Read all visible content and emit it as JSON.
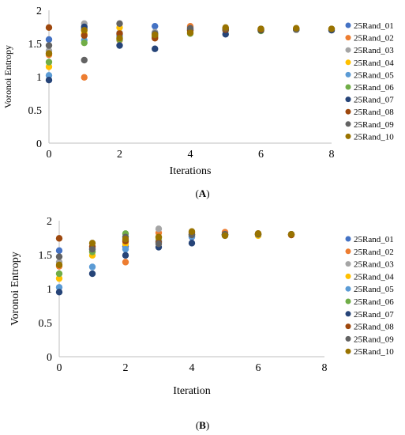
{
  "legend_colors": [
    "#4472C4",
    "#ED7D31",
    "#A5A5A5",
    "#FFC000",
    "#5B9BD5",
    "#70AD47",
    "#264478",
    "#9E480E",
    "#636363",
    "#997300"
  ],
  "chart_data": [
    {
      "type": "scatter",
      "panel_label": "A",
      "xlabel": "Iterations",
      "ylabel": "Voronoi Entropy",
      "xlim": [
        0,
        8
      ],
      "ylim": [
        0,
        2
      ],
      "xticks": [
        0,
        2,
        4,
        6,
        8
      ],
      "yticks": [
        0,
        0.5,
        1,
        1.5,
        2
      ],
      "grid": false,
      "legend": "right",
      "series": [
        {
          "name": "25Rand_01",
          "points": [
            [
              0,
              1.56
            ],
            [
              1,
              1.72
            ],
            [
              2,
              1.63
            ],
            [
              3,
              1.76
            ],
            [
              4,
              1.74
            ],
            [
              5,
              1.7
            ]
          ]
        },
        {
          "name": "25Rand_02",
          "points": [
            [
              0,
              1.33
            ],
            [
              1,
              0.99
            ],
            [
              2,
              1.55
            ],
            [
              3,
              1.6
            ],
            [
              4,
              1.76
            ],
            [
              5,
              1.72
            ],
            [
              6,
              1.71
            ],
            [
              7,
              1.72
            ],
            [
              8,
              1.71
            ]
          ]
        },
        {
          "name": "25Rand_03",
          "points": [
            [
              0,
              1.39
            ],
            [
              1,
              1.8
            ],
            [
              2,
              1.66
            ],
            [
              3,
              1.67
            ],
            [
              4,
              1.72
            ],
            [
              5,
              1.71
            ],
            [
              6,
              1.7
            ],
            [
              7,
              1.71
            ],
            [
              8,
              1.72
            ]
          ]
        },
        {
          "name": "25Rand_04",
          "points": [
            [
              0,
              1.15
            ],
            [
              1,
              1.65
            ],
            [
              2,
              1.74
            ],
            [
              3,
              1.62
            ],
            [
              4,
              1.68
            ],
            [
              5,
              1.73
            ],
            [
              6,
              1.71
            ]
          ]
        },
        {
          "name": "25Rand_05",
          "points": [
            [
              0,
              1.02
            ],
            [
              1,
              1.55
            ],
            [
              2,
              1.6
            ],
            [
              3,
              1.65
            ],
            [
              4,
              1.7
            ],
            [
              5,
              1.71
            ]
          ]
        },
        {
          "name": "25Rand_06",
          "points": [
            [
              0,
              1.22
            ],
            [
              1,
              1.51
            ],
            [
              2,
              1.56
            ],
            [
              3,
              1.6
            ],
            [
              4,
              1.65
            ],
            [
              5,
              1.7
            ],
            [
              6,
              1.69
            ],
            [
              7,
              1.71
            ]
          ]
        },
        {
          "name": "25Rand_07",
          "points": [
            [
              0,
              0.95
            ],
            [
              1,
              1.75
            ],
            [
              2,
              1.47
            ],
            [
              3,
              1.42
            ],
            [
              4,
              1.71
            ],
            [
              5,
              1.64
            ],
            [
              6,
              1.7
            ],
            [
              7,
              1.71
            ],
            [
              8,
              1.7
            ]
          ]
        },
        {
          "name": "25Rand_08",
          "points": [
            [
              0,
              1.74
            ],
            [
              1,
              1.62
            ],
            [
              2,
              1.65
            ],
            [
              3,
              1.58
            ],
            [
              4,
              1.7
            ],
            [
              5,
              1.71
            ],
            [
              6,
              1.71
            ],
            [
              7,
              1.72
            ]
          ]
        },
        {
          "name": "25Rand_09",
          "points": [
            [
              0,
              1.47
            ],
            [
              1,
              1.25
            ],
            [
              2,
              1.8
            ],
            [
              3,
              1.65
            ],
            [
              4,
              1.73
            ],
            [
              5,
              1.73
            ],
            [
              6,
              1.72
            ],
            [
              7,
              1.71
            ]
          ]
        },
        {
          "name": "25Rand_10",
          "points": [
            [
              0,
              1.35
            ],
            [
              1,
              1.7
            ],
            [
              2,
              1.58
            ],
            [
              3,
              1.63
            ],
            [
              4,
              1.66
            ],
            [
              5,
              1.74
            ],
            [
              6,
              1.72
            ],
            [
              7,
              1.73
            ],
            [
              8,
              1.72
            ]
          ]
        }
      ]
    },
    {
      "type": "scatter",
      "panel_label": "B",
      "xlabel": "Iteration",
      "ylabel": "Voronoi Entropy",
      "xlim": [
        0,
        8
      ],
      "ylim": [
        0,
        2
      ],
      "xticks": [
        0,
        2,
        4,
        6,
        8
      ],
      "yticks": [
        0,
        0.5,
        1,
        1.5,
        2
      ],
      "grid": false,
      "legend": "right",
      "series": [
        {
          "name": "25Rand_01",
          "points": [
            [
              0,
              1.56
            ],
            [
              1,
              1.6
            ],
            [
              2,
              1.62
            ],
            [
              3,
              1.7
            ],
            [
              4,
              1.76
            ],
            [
              5,
              1.78
            ]
          ]
        },
        {
          "name": "25Rand_02",
          "points": [
            [
              0,
              1.33
            ],
            [
              1,
              1.55
            ],
            [
              2,
              1.39
            ],
            [
              3,
              1.82
            ],
            [
              4,
              1.8
            ],
            [
              5,
              1.83
            ],
            [
              6,
              1.8
            ],
            [
              7,
              1.79
            ]
          ]
        },
        {
          "name": "25Rand_03",
          "points": [
            [
              0,
              1.39
            ],
            [
              1,
              1.58
            ],
            [
              2,
              1.7
            ],
            [
              3,
              1.88
            ],
            [
              4,
              1.8
            ],
            [
              5,
              1.8
            ],
            [
              6,
              1.81
            ]
          ]
        },
        {
          "name": "25Rand_04",
          "points": [
            [
              0,
              1.15
            ],
            [
              1,
              1.49
            ],
            [
              2,
              1.66
            ],
            [
              3,
              1.73
            ],
            [
              4,
              1.78
            ],
            [
              5,
              1.79
            ],
            [
              6,
              1.78
            ]
          ]
        },
        {
          "name": "25Rand_05",
          "points": [
            [
              0,
              1.02
            ],
            [
              1,
              1.32
            ],
            [
              2,
              1.58
            ],
            [
              3,
              1.7
            ],
            [
              4,
              1.77
            ],
            [
              5,
              1.8
            ]
          ]
        },
        {
          "name": "25Rand_06",
          "points": [
            [
              0,
              1.22
            ],
            [
              1,
              1.54
            ],
            [
              2,
              1.81
            ],
            [
              3,
              1.75
            ],
            [
              4,
              1.8
            ],
            [
              5,
              1.79
            ],
            [
              6,
              1.8
            ]
          ]
        },
        {
          "name": "25Rand_07",
          "points": [
            [
              0,
              0.95
            ],
            [
              1,
              1.22
            ],
            [
              2,
              1.49
            ],
            [
              3,
              1.61
            ],
            [
              4,
              1.67
            ],
            [
              5,
              1.8
            ],
            [
              6,
              1.8
            ],
            [
              7,
              1.8
            ]
          ]
        },
        {
          "name": "25Rand_08",
          "points": [
            [
              0,
              1.74
            ],
            [
              1,
              1.62
            ],
            [
              2,
              1.7
            ],
            [
              3,
              1.68
            ],
            [
              4,
              1.82
            ],
            [
              5,
              1.8
            ],
            [
              6,
              1.81
            ],
            [
              7,
              1.79
            ]
          ]
        },
        {
          "name": "25Rand_09",
          "points": [
            [
              0,
              1.47
            ],
            [
              1,
              1.58
            ],
            [
              2,
              1.76
            ],
            [
              3,
              1.66
            ],
            [
              4,
              1.79
            ],
            [
              5,
              1.8
            ],
            [
              6,
              1.8
            ]
          ]
        },
        {
          "name": "25Rand_10",
          "points": [
            [
              0,
              1.35
            ],
            [
              1,
              1.67
            ],
            [
              2,
              1.73
            ],
            [
              3,
              1.76
            ],
            [
              4,
              1.84
            ],
            [
              5,
              1.78
            ],
            [
              6,
              1.81
            ],
            [
              7,
              1.8
            ]
          ]
        }
      ]
    }
  ]
}
